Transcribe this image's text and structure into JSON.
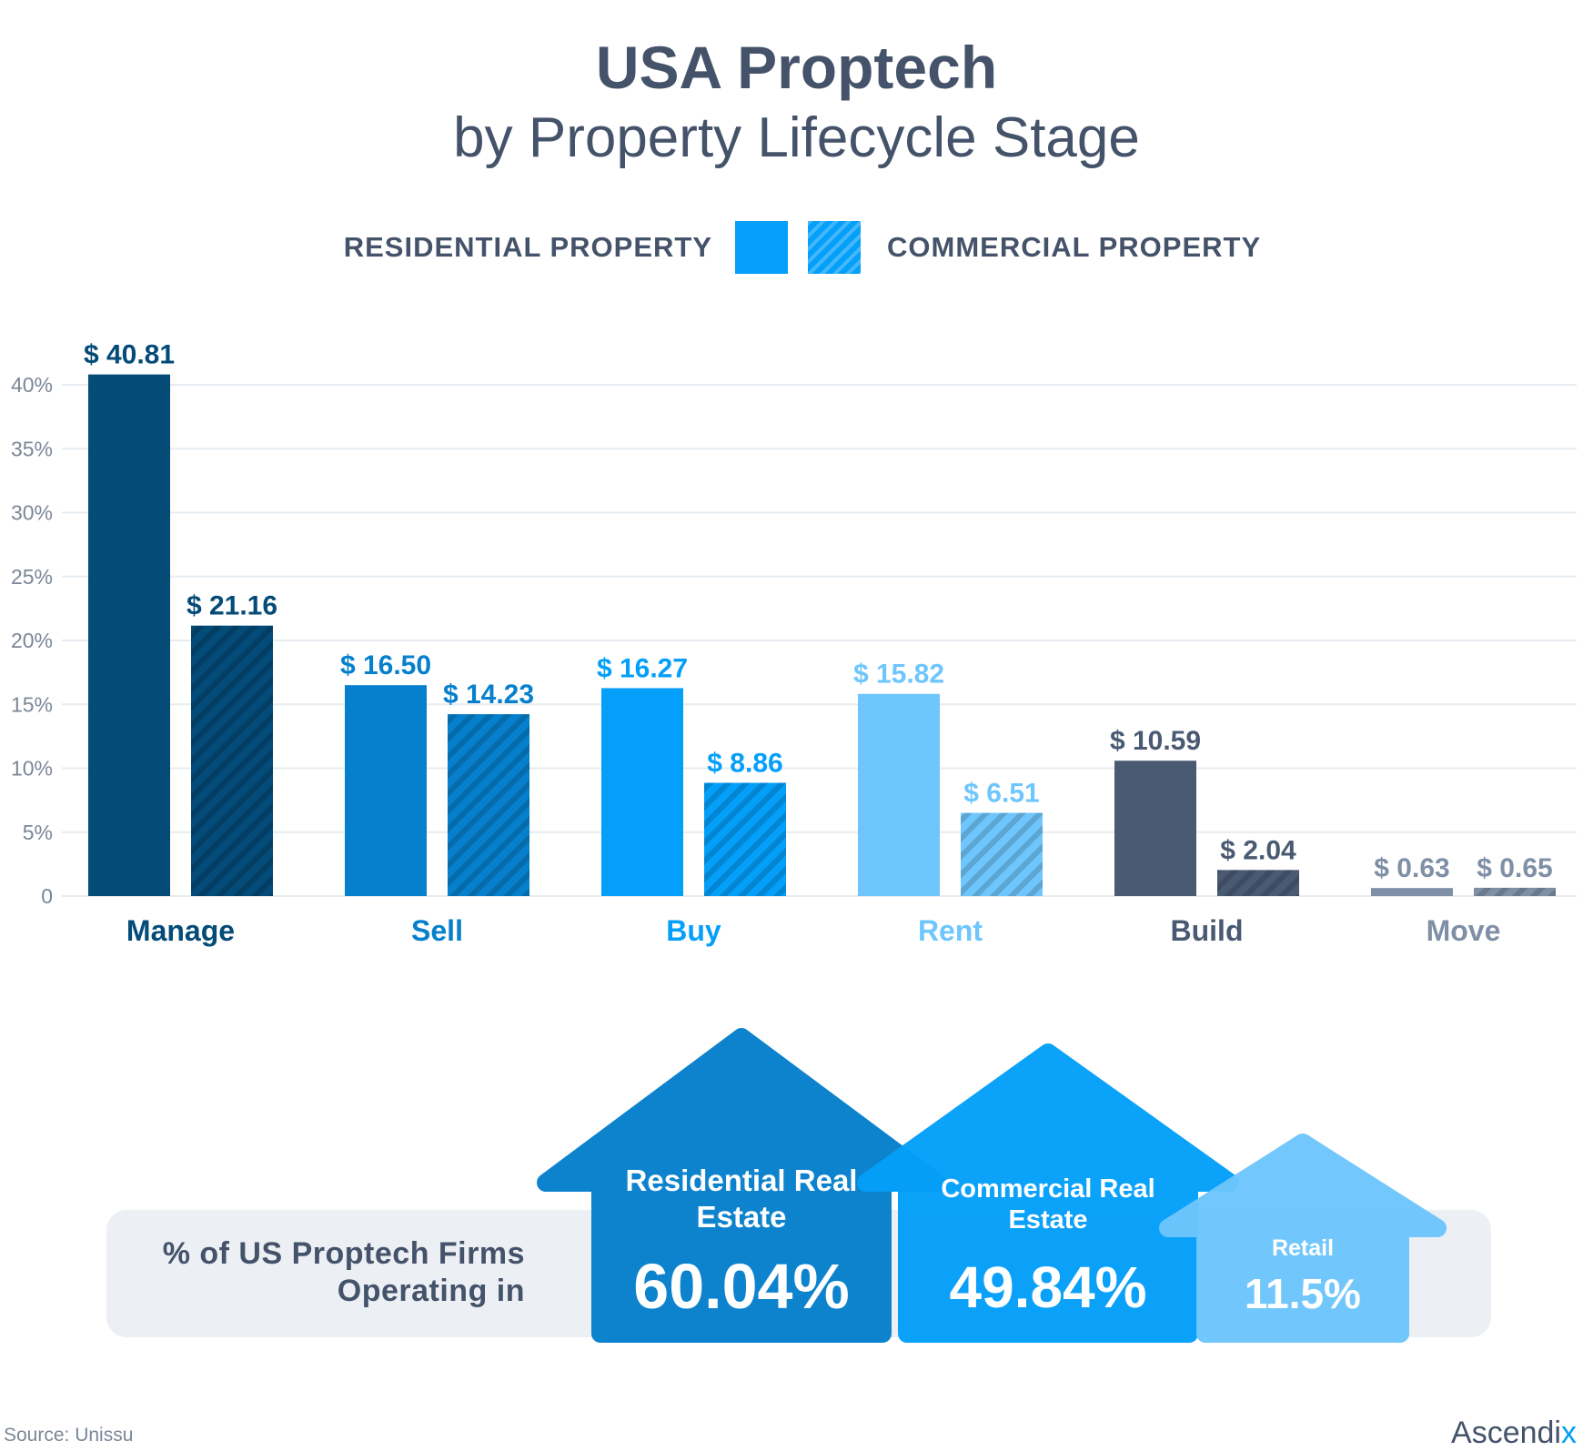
{
  "title": "USA Proptech",
  "subtitle": "by Property Lifecycle Stage",
  "legend": {
    "residential": "RESIDENTIAL PROPERTY",
    "commercial": "COMMERCIAL PROPERTY"
  },
  "chart_data": {
    "type": "bar",
    "yticks": [
      "0",
      "5%",
      "10%",
      "15%",
      "20%",
      "25%",
      "30%",
      "35%",
      "40%"
    ],
    "ylim": [
      0,
      40
    ],
    "grid": true,
    "legend_position": "top",
    "categories": [
      {
        "name": "Manage",
        "color": "#044b78"
      },
      {
        "name": "Sell",
        "color": "#0680cc"
      },
      {
        "name": "Buy",
        "color": "#049ff9"
      },
      {
        "name": "Rent",
        "color": "#6ec6fd"
      },
      {
        "name": "Build",
        "color": "#4a5a73"
      },
      {
        "name": "Move",
        "color": "#7e8fa6"
      }
    ],
    "series": [
      {
        "name": "RESIDENTIAL PROPERTY",
        "pattern": "solid",
        "values": [
          40.81,
          16.5,
          16.27,
          15.82,
          10.59,
          0.63
        ],
        "labels": [
          "$ 40.81",
          "$ 16.50",
          "$ 16.27",
          "$ 15.82",
          "$ 10.59",
          "$ 0.63"
        ]
      },
      {
        "name": "COMMERCIAL PROPERTY",
        "pattern": "hatched",
        "values": [
          21.16,
          14.23,
          8.86,
          6.51,
          2.04,
          0.65
        ],
        "labels": [
          "$ 21.16",
          "$ 14.23",
          "$ 8.86",
          "$ 6.51",
          "$ 2.04",
          "$ 0.65"
        ]
      }
    ]
  },
  "firms": {
    "label": "% of US Proptech Firms Operating in",
    "items": [
      {
        "name": "Residential Real Estate",
        "value": "60.04%",
        "color": "#0680cc"
      },
      {
        "name": "Commercial Real Estate",
        "value": "49.84%",
        "color": "#049ff9"
      },
      {
        "name": "Retail",
        "value": "11.5%",
        "color": "#6ec6fd"
      }
    ]
  },
  "source": "Source:  Unissu",
  "brand": {
    "name": "Ascendi",
    "accent": "x"
  },
  "colors": {
    "text": "#44536a",
    "grid": "#e6ecf1",
    "axis_text": "#7b8797",
    "band": "#eceff3"
  }
}
